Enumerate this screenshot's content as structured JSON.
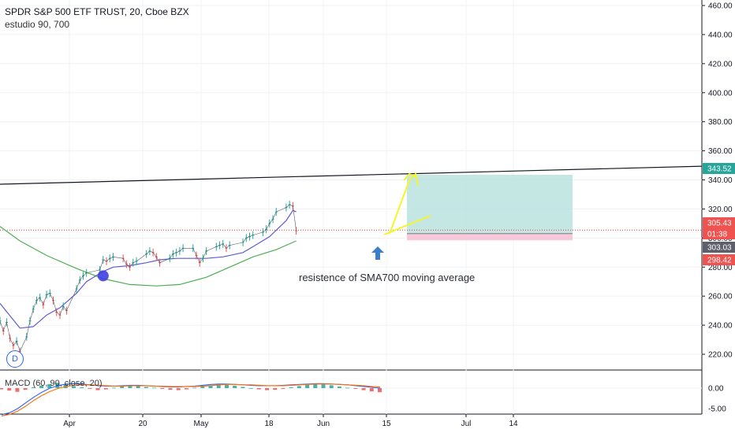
{
  "header": {
    "title": "SPDR S&P 500 ETF TRUST, 20, Cboe BZX",
    "study": "estudio 90, 700",
    "macd_label": "MACD (60, 90, close, 20)"
  },
  "annotation": "resistence of  SMA700 moving average",
  "d_badge": "D",
  "price_axis_ticks": [
    "460.00",
    "440.00",
    "420.00",
    "400.00",
    "380.00",
    "360.00",
    "340.00",
    "320.00",
    "300.00",
    "280.00",
    "260.00",
    "240.00",
    "220.00"
  ],
  "macd_axis_ticks": [
    "0.00",
    "-5.00"
  ],
  "time_axis_ticks": [
    "Apr",
    "20",
    "May",
    "18",
    "Jun",
    "15",
    "Jul",
    "14"
  ],
  "price_badges": [
    {
      "label": "343.52",
      "color": "#26a69a"
    },
    {
      "label": "305.43",
      "color": "#ef5350"
    },
    {
      "label": "01:38",
      "color": "#ef5350"
    },
    {
      "label": "303.03",
      "color": "#5d606b"
    },
    {
      "label": "298.42",
      "color": "#ef5350"
    }
  ],
  "colors": {
    "price_line": "#e53935",
    "sma90": "#5b5bd6",
    "sma700": "#4caf50",
    "trendline": "#131722",
    "target_zone": "#b2dfdb",
    "stop_zone": "#f8bbd0",
    "sketch": "#f5f52a",
    "arrow": "#3c7fc8",
    "marker": "#3f3fe0"
  },
  "chart_data": {
    "type": "line",
    "title": "SPDR S&P 500 ETF TRUST, 20, Cboe BZX",
    "xlabel": "",
    "ylabel": "",
    "ylim": [
      205,
      468
    ],
    "x_ticks": [
      "Apr",
      "20",
      "May",
      "18",
      "Jun",
      "15",
      "Jul",
      "14"
    ],
    "grid": true,
    "series": [
      {
        "name": "",
        "role": "price",
        "x": [
          "Mar 14",
          "Mar 15",
          "Mar 16",
          "Mar 17",
          "Mar 18",
          "Mar 19",
          "Mar 20",
          "Mar 22",
          "Mar 23",
          "Mar 24",
          "Mar 25",
          "Mar 26",
          "Mar 27",
          "Mar 28",
          "Mar 29",
          "Mar 30",
          "Mar 31",
          "Apr 1",
          "Apr 2",
          "Apr 3",
          "Apr 6",
          "Apr 7",
          "Apr 8",
          "Apr 9",
          "Apr 13",
          "Apr 14",
          "Apr 15",
          "Apr 16",
          "Apr 17",
          "Apr 20",
          "Apr 21",
          "Apr 22",
          "Apr 23",
          "Apr 24",
          "Apr 27",
          "Apr 28",
          "Apr 29",
          "Apr 30",
          "May 1",
          "May 4",
          "May 5",
          "May 6",
          "May 7",
          "May 8",
          "May 11",
          "May 12",
          "May 13",
          "May 14",
          "May 15",
          "May 18",
          "May 19",
          "May 20",
          "May 21",
          "May 22",
          "May 26",
          "May 27",
          "May 28",
          "May 29",
          "Jun 1",
          "Jun 2",
          "Jun 3",
          "Jun 4",
          "Jun 5",
          "Jun 8",
          "Jun 9",
          "Jun 10",
          "Jun 11"
        ],
        "values": [
          243,
          236,
          242,
          231,
          226,
          229,
          222,
          232,
          243,
          251,
          257,
          259,
          254,
          261,
          262,
          257,
          249,
          247,
          253,
          250,
          265,
          271,
          274,
          276,
          278,
          285,
          284,
          286,
          287,
          286,
          282,
          280,
          283,
          284,
          289,
          291,
          290,
          287,
          283,
          286,
          289,
          290,
          291,
          293,
          293,
          288,
          283,
          286,
          291,
          294,
          295,
          296,
          293,
          295,
          297,
          300,
          301,
          302,
          304,
          306,
          310,
          313,
          318,
          321,
          323,
          322,
          305
        ]
      },
      {
        "name": "",
        "role": "sma90",
        "x": [
          "Mar 14",
          "Mar 20",
          "Mar 24",
          "Mar 28",
          "Apr 1",
          "Apr 6",
          "Apr 9",
          "Apr 14",
          "Apr 17",
          "Apr 22",
          "Apr 27",
          "May 1",
          "May 6",
          "May 11",
          "May 15",
          "May 20",
          "May 26",
          "May 29",
          "Jun 3",
          "Jun 8",
          "Jun 10",
          "Jun 11"
        ],
        "values": [
          255,
          238,
          239,
          247,
          252,
          262,
          270,
          277,
          280,
          281,
          283,
          285,
          286,
          286,
          286,
          287,
          290,
          294,
          301,
          312,
          319,
          318
        ]
      },
      {
        "name": "",
        "role": "sma700",
        "x": [
          "Mar 14",
          "Mar 20",
          "Mar 28",
          "Apr 6",
          "Apr 14",
          "Apr 22",
          "Apr 30",
          "May 7",
          "May 15",
          "May 22",
          "May 29",
          "Jun 5",
          "Jun 11"
        ],
        "values": [
          308,
          298,
          288,
          279,
          272,
          268,
          267,
          268,
          273,
          280,
          287,
          292,
          298
        ]
      }
    ],
    "annotations": [
      {
        "text": "resistence of  SMA700 moving average"
      },
      {
        "type": "trendline",
        "x": [
          "Mar 14",
          "Jul 28"
        ],
        "values": [
          337,
          345
        ]
      },
      {
        "type": "long_position",
        "entry": 303.03,
        "target": 343.52,
        "stop": 298.42
      }
    ]
  },
  "macd": {
    "histogram": [
      -0.3,
      -0.6,
      -0.9,
      -0.4,
      0.2,
      0.6,
      1.0,
      1.3,
      0.9,
      0.5,
      0.2,
      -0.2,
      -0.5,
      -0.3,
      0.1,
      0.4,
      0.6,
      0.5,
      0.3,
      0.1,
      -0.2,
      -0.4,
      -0.5,
      -0.3,
      0.1,
      0.4,
      0.7,
      0.9,
      0.8,
      0.6,
      0.3,
      0.0,
      -0.3,
      -0.5,
      -0.4,
      -0.2,
      0.2,
      0.5,
      0.8,
      1.0,
      0.9,
      0.7,
      0.4,
      0.1,
      -0.2,
      -0.5,
      -0.8,
      -1.0
    ],
    "macd_line": [
      -6.5,
      -6.0,
      -5.0,
      -3.6,
      -2.2,
      -1.0,
      0.0,
      0.6,
      1.0,
      1.1,
      1.0,
      0.8,
      0.6,
      0.5,
      0.5,
      0.6,
      0.7,
      0.7,
      0.6,
      0.5,
      0.4,
      0.3,
      0.3,
      0.4,
      0.5,
      0.7,
      0.9,
      1.0,
      1.0,
      0.9,
      0.8,
      0.7,
      0.6,
      0.6,
      0.6,
      0.7,
      0.8,
      0.9,
      1.0,
      1.1,
      1.1,
      1.0,
      0.9,
      0.8,
      0.6,
      0.4,
      0.2,
      0.0
    ],
    "signal_line": [
      -6.8,
      -6.4,
      -5.6,
      -4.4,
      -3.0,
      -1.8,
      -0.8,
      -0.1,
      0.4,
      0.7,
      0.8,
      0.8,
      0.7,
      0.6,
      0.5,
      0.5,
      0.6,
      0.6,
      0.6,
      0.5,
      0.5,
      0.4,
      0.4,
      0.4,
      0.4,
      0.5,
      0.6,
      0.8,
      0.9,
      0.9,
      0.8,
      0.8,
      0.7,
      0.6,
      0.6,
      0.6,
      0.7,
      0.8,
      0.9,
      1.0,
      1.0,
      1.0,
      0.9,
      0.8,
      0.7,
      0.6,
      0.4,
      0.3
    ]
  }
}
